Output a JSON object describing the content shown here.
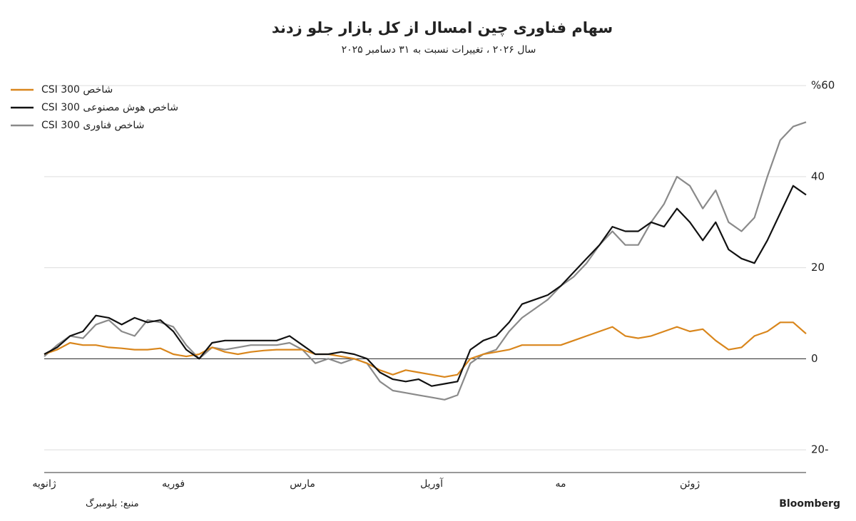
{
  "chart_data": {
    "type": "line",
    "title": "سهام فناوری چین امسال از کل بازار جلو زدند",
    "subtitle": "سال ۲۰۲۶ ، تغییرات نسبت به ۳۱ دسامبر ۲۰۲۵",
    "source": "منبع: بلومبرگ",
    "brand": "Bloomberg",
    "categories": [
      "ژانویه",
      null,
      null,
      null,
      null,
      null,
      null,
      null,
      null,
      null,
      "فوریه",
      null,
      null,
      null,
      null,
      null,
      null,
      null,
      null,
      null,
      "مارس",
      null,
      null,
      null,
      null,
      null,
      null,
      null,
      null,
      null,
      "آوریل",
      null,
      null,
      null,
      null,
      null,
      null,
      null,
      null,
      null,
      "مه",
      null,
      null,
      null,
      null,
      null,
      null,
      null,
      null,
      null,
      "ژوئن",
      null,
      null,
      null,
      null,
      null,
      null,
      null,
      null,
      null
    ],
    "series": [
      {
        "name": "شاخص CSI 300",
        "color": "#d9861c",
        "values": [
          1,
          2,
          3.5,
          3,
          3,
          2.5,
          2.3,
          2,
          2,
          2.3,
          1,
          0.5,
          1,
          2.5,
          1.5,
          1,
          1.5,
          1.8,
          2,
          2,
          2,
          1,
          1,
          0.5,
          0,
          -1,
          -2.5,
          -3.5,
          -2.5,
          -3,
          -3.5,
          -4,
          -3.5,
          0,
          1,
          1.5,
          2,
          3,
          3,
          3,
          3,
          4,
          5,
          6,
          7,
          5,
          4.5,
          5,
          6,
          7,
          6,
          6.5,
          4,
          2,
          2.5,
          5,
          6,
          8,
          8,
          5.5
        ]
      },
      {
        "name": "شاخص هوش مصنوعی CSI 300",
        "color": "#111111",
        "values": [
          1,
          2.5,
          5,
          6,
          9.5,
          9,
          7.5,
          9,
          8,
          8.5,
          6,
          2,
          0,
          3.5,
          4,
          4,
          4,
          4,
          4,
          5,
          3,
          1,
          1,
          1.5,
          1,
          0,
          -3,
          -4.5,
          -5,
          -4.5,
          -6,
          -5.5,
          -5,
          2,
          4,
          5,
          8,
          12,
          13,
          14,
          16,
          19,
          22,
          25,
          29,
          28,
          28,
          30,
          29,
          33,
          30,
          26,
          30,
          24,
          22,
          21,
          26,
          32,
          38,
          36
        ]
      },
      {
        "name": "شاخص فناوری CSI 300",
        "color": "#8a8a8a",
        "values": [
          0.5,
          3,
          5,
          4.5,
          7.5,
          8.5,
          6,
          5,
          8.5,
          8,
          7,
          3,
          0,
          2.5,
          2,
          2.5,
          3,
          3,
          3,
          3.5,
          2,
          -1,
          0,
          -1,
          0,
          -1,
          -5,
          -7,
          -7.5,
          -8,
          -8.5,
          -9,
          -8,
          -1,
          1,
          2,
          6,
          9,
          11,
          13,
          16,
          18,
          21,
          25,
          28,
          25,
          25,
          30,
          34,
          40,
          38,
          33,
          37,
          30,
          28,
          31,
          40,
          48,
          51,
          52
        ]
      }
    ],
    "ylim": [
      -25,
      63
    ],
    "yticks": [
      {
        "value": -20,
        "label": "20-"
      },
      0,
      20,
      40,
      {
        "value": 60,
        "label": "%60"
      }
    ],
    "grid": true,
    "legend": "upper left"
  }
}
